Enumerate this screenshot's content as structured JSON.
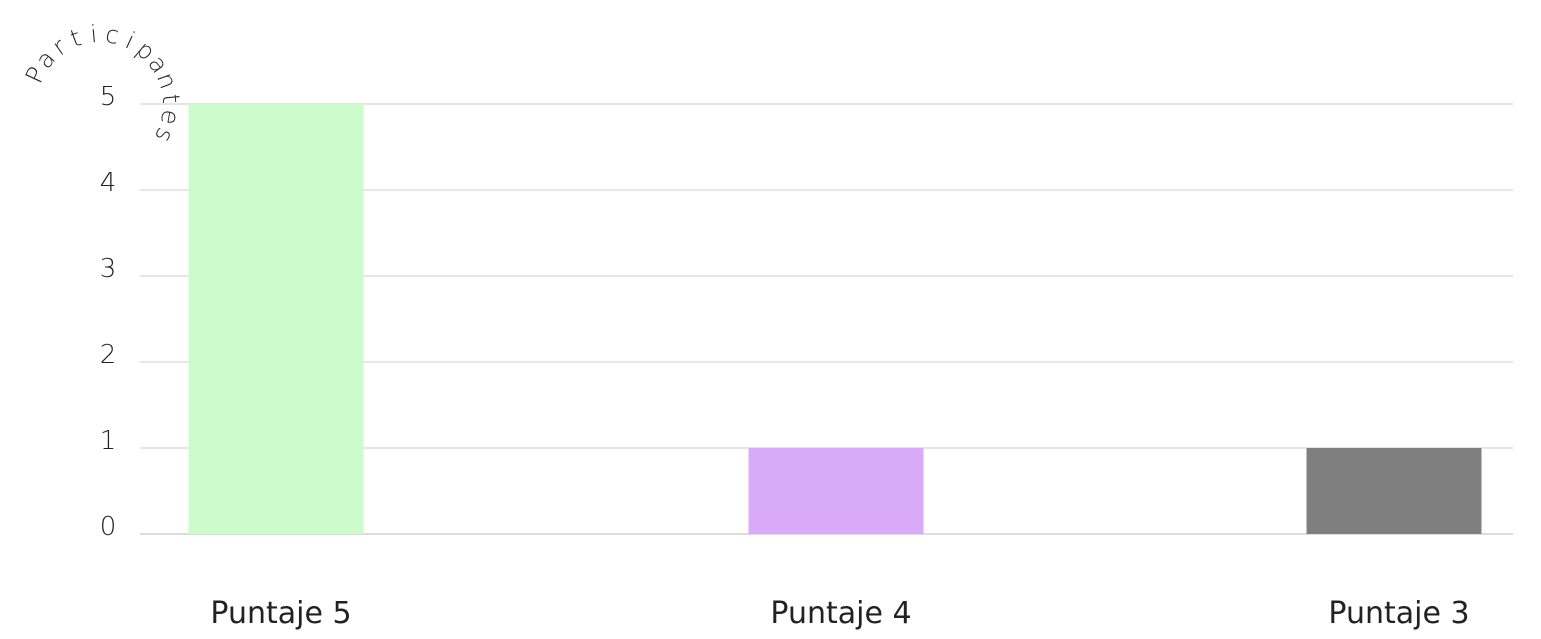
{
  "chart_data": {
    "type": "bar",
    "title": "",
    "ylabel": "Participantes",
    "xlabel": "",
    "categories": [
      "Puntaje 5",
      "Puntaje 4",
      "Puntaje 3"
    ],
    "values": [
      5,
      1,
      1
    ],
    "bar_colors": [
      "#ccfccc",
      "#d8aaf8",
      "#7f7f7f"
    ],
    "yticks": [
      "0",
      "1",
      "2",
      "3",
      "4",
      "5"
    ],
    "ylim": [
      0,
      5
    ],
    "grid": true,
    "legend": "none"
  }
}
